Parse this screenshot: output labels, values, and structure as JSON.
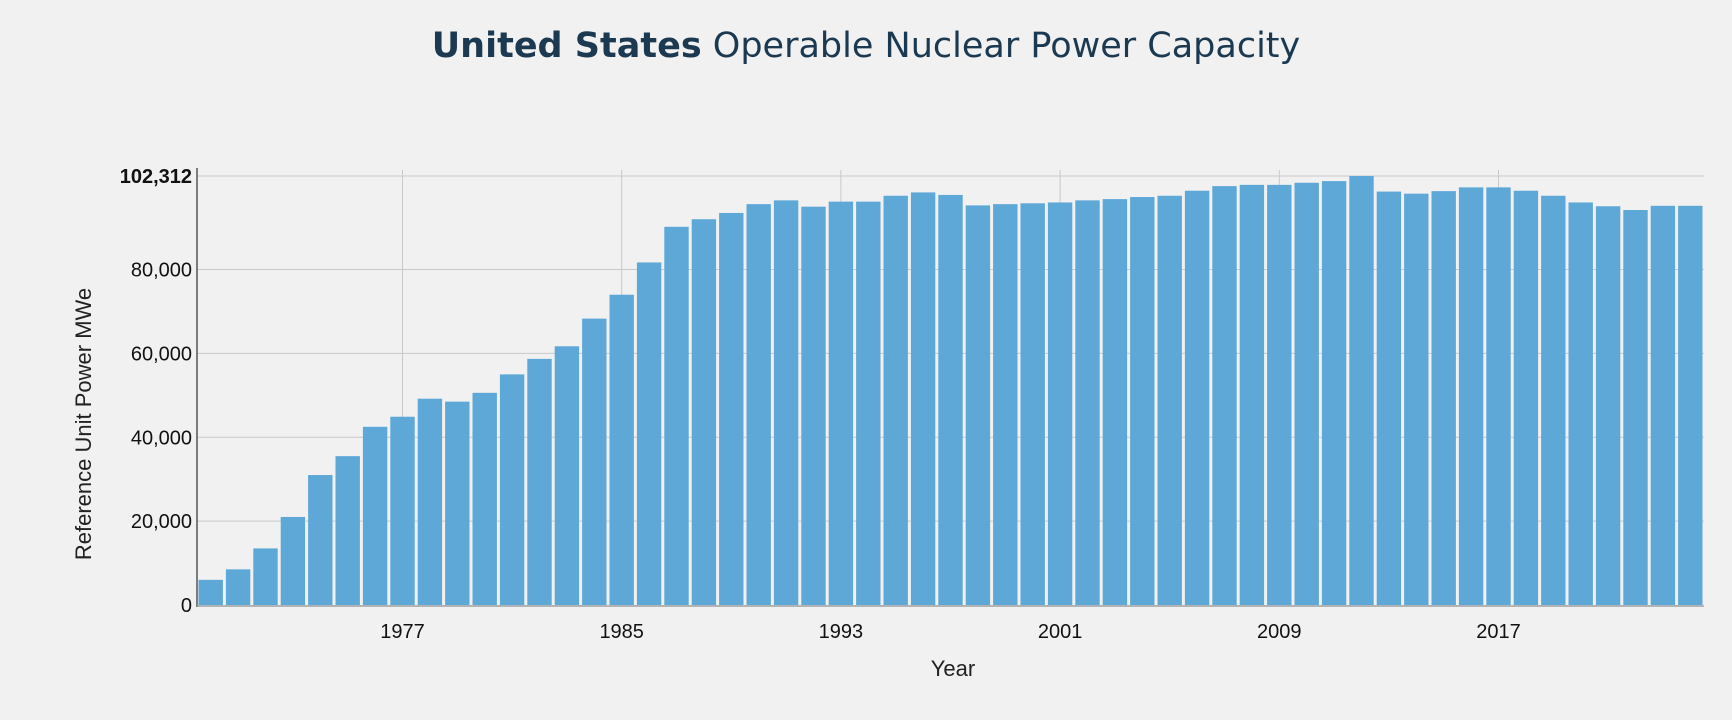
{
  "title": {
    "bold": "United States",
    "rest": " Operable Nuclear Power Capacity"
  },
  "chart_data": {
    "type": "bar",
    "title": "United States Operable Nuclear Power Capacity",
    "xlabel": "Year",
    "ylabel": "Reference Unit Power MWe",
    "ylim": [
      0,
      102312
    ],
    "y_ticks": [
      "0",
      "20,000",
      "40,000",
      "60,000",
      "80,000",
      "102,312"
    ],
    "y_tick_values": [
      0,
      20000,
      40000,
      60000,
      80000,
      102312
    ],
    "x_ticks": [
      "1977",
      "1985",
      "1993",
      "2001",
      "2009",
      "2017"
    ],
    "x_tick_years": [
      1977,
      1985,
      1993,
      2001,
      2009,
      2017
    ],
    "grid": true,
    "bar_color": "#5ea8d8",
    "years": [
      1970,
      1971,
      1972,
      1973,
      1974,
      1975,
      1976,
      1977,
      1978,
      1979,
      1980,
      1981,
      1982,
      1983,
      1984,
      1985,
      1986,
      1987,
      1988,
      1989,
      1990,
      1991,
      1992,
      1993,
      1994,
      1995,
      1996,
      1997,
      1998,
      1999,
      2000,
      2001,
      2002,
      2003,
      2004,
      2005,
      2006,
      2007,
      2008,
      2009,
      2010,
      2011,
      2012,
      2013,
      2014,
      2015,
      2016,
      2017,
      2018,
      2019,
      2020,
      2021,
      2022,
      2023,
      2024
    ],
    "values": [
      6000,
      8500,
      13500,
      21000,
      31000,
      35500,
      42500,
      44900,
      49200,
      48500,
      50600,
      55000,
      58700,
      61700,
      68300,
      74000,
      81700,
      90200,
      92000,
      93500,
      95600,
      96500,
      95000,
      96200,
      96200,
      97600,
      98400,
      97800,
      95300,
      95600,
      95800,
      96000,
      96500,
      96800,
      97300,
      97600,
      98800,
      99900,
      100200,
      100200,
      100700,
      101100,
      102312,
      98600,
      98100,
      98700,
      99600,
      99600,
      98800,
      97600,
      96000,
      95100,
      94200,
      95200,
      95200
    ]
  }
}
